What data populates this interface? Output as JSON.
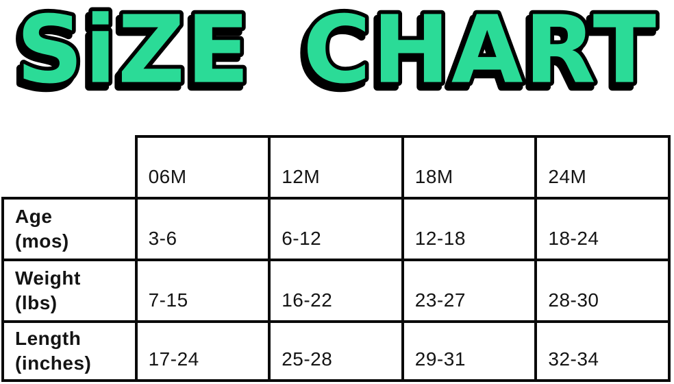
{
  "title": {
    "text": "SiZE CHART"
  },
  "colors": {
    "title_fill": "#2bdb97",
    "title_outline": "#000000",
    "table_border": "#0a0a0a",
    "text": "#141414",
    "background": "#ffffff"
  },
  "table": {
    "column_headers": [
      "06M",
      "12M",
      "18M",
      "24M"
    ],
    "rows": [
      {
        "label": "Age",
        "unit": "(mos)",
        "values": [
          "3-6",
          "6-12",
          "12-18",
          "18-24"
        ]
      },
      {
        "label": "Weight",
        "unit": "(lbs)",
        "values": [
          "7-15",
          "16-22",
          "23-27",
          "28-30"
        ]
      },
      {
        "label": "Length",
        "unit": "(inches)",
        "values": [
          "17-24",
          "25-28",
          "29-31",
          "32-34"
        ]
      }
    ]
  },
  "chart_data": {
    "type": "table",
    "title": "SiZE CHART",
    "columns": [
      "",
      "06M",
      "12M",
      "18M",
      "24M"
    ],
    "rows": [
      [
        "Age (mos)",
        "3-6",
        "6-12",
        "12-18",
        "18-24"
      ],
      [
        "Weight (lbs)",
        "7-15",
        "16-22",
        "23-27",
        "28-30"
      ],
      [
        "Length (inches)",
        "17-24",
        "25-28",
        "29-31",
        "32-34"
      ]
    ]
  }
}
